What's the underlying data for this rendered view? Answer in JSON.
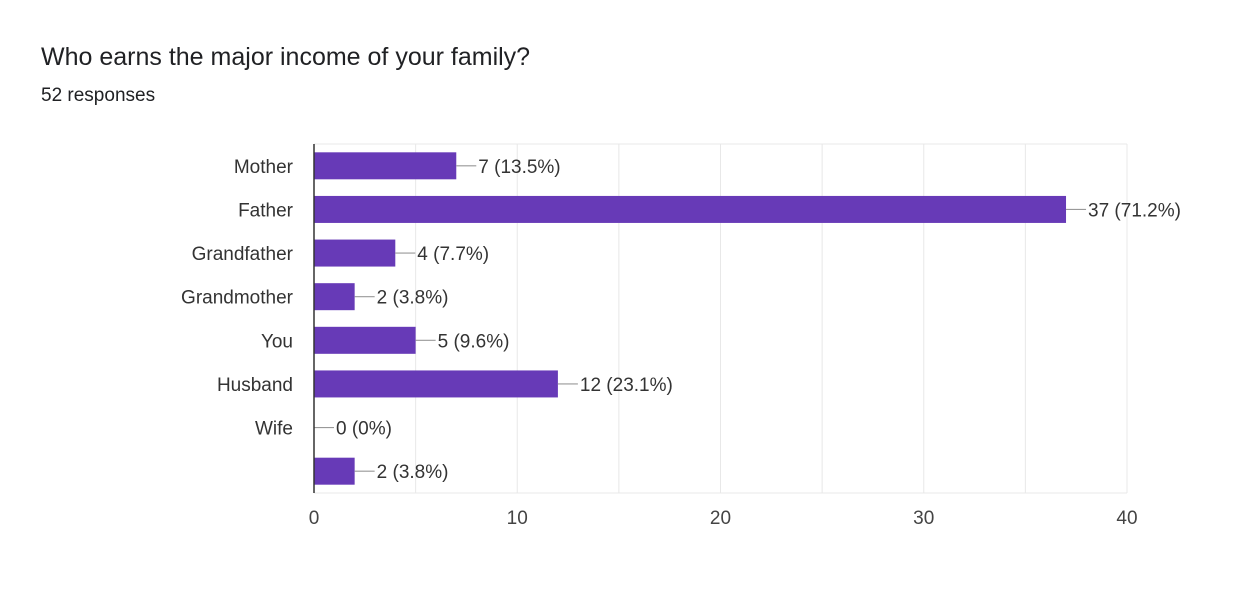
{
  "page": {
    "title": "Who earns the major income of your family?",
    "response_count": "52 responses"
  },
  "colors": {
    "bar": "#673ab7",
    "grid": "#e8e8e8",
    "axis": "#333333",
    "leader": "#999999"
  },
  "chart_data": {
    "type": "bar",
    "orientation": "horizontal",
    "categories": [
      "Mother",
      "Father",
      "Grandfather",
      "Grandmother",
      "You",
      "Husband",
      "Wife",
      ""
    ],
    "values": [
      7,
      37,
      4,
      2,
      5,
      12,
      0,
      2
    ],
    "data_labels": [
      "7 (13.5%)",
      "37 (71.2%)",
      "4 (7.7%)",
      "2 (3.8%)",
      "5 (9.6%)",
      "12 (23.1%)",
      "0 (0%)",
      "2 (3.8%)"
    ],
    "xlim": [
      0,
      40
    ],
    "xticks": [
      0,
      10,
      20,
      30,
      40
    ],
    "xtick_labels": [
      "0",
      "10",
      "20",
      "30",
      "40"
    ],
    "grid": true
  }
}
